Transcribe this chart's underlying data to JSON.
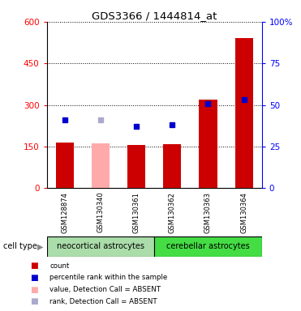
{
  "title": "GDS3366 / 1444814_at",
  "samples": [
    "GSM128874",
    "GSM130340",
    "GSM130361",
    "GSM130362",
    "GSM130363",
    "GSM130364"
  ],
  "count_values": [
    165,
    null,
    155,
    158,
    320,
    540
  ],
  "count_absent_values": [
    null,
    163,
    null,
    null,
    null,
    null
  ],
  "percentile_values": [
    41,
    null,
    37,
    38,
    51,
    53
  ],
  "percentile_absent_values": [
    null,
    41,
    null,
    null,
    null,
    null
  ],
  "bar_color_present": "#cc0000",
  "bar_color_absent": "#ffaaaa",
  "dot_color_present": "#0000cc",
  "dot_color_absent": "#aaaacc",
  "left_ylim": [
    0,
    600
  ],
  "right_ylim": [
    0,
    100
  ],
  "left_yticks": [
    0,
    150,
    300,
    450,
    600
  ],
  "left_yticklabels": [
    "0",
    "150",
    "300",
    "450",
    "600"
  ],
  "right_yticks": [
    0,
    25,
    50,
    75,
    100
  ],
  "right_yticklabels": [
    "0",
    "25",
    "50",
    "75",
    "100%"
  ],
  "group1_label": "neocortical astrocytes",
  "group2_label": "cerebellar astrocytes",
  "group1_indices": [
    0,
    1,
    2
  ],
  "group2_indices": [
    3,
    4,
    5
  ],
  "cell_type_label": "cell type",
  "legend_items": [
    {
      "label": "count",
      "color": "#cc0000"
    },
    {
      "label": "percentile rank within the sample",
      "color": "#0000cc"
    },
    {
      "label": "value, Detection Call = ABSENT",
      "color": "#ffaaaa"
    },
    {
      "label": "rank, Detection Call = ABSENT",
      "color": "#aaaacc"
    }
  ],
  "bar_width": 0.5,
  "background_color": "#ffffff",
  "plot_bg_color": "#ffffff",
  "sample_area_bg": "#cccccc",
  "group1_bg": "#aaddaa",
  "group2_bg": "#44dd44",
  "border_color": "#000000"
}
